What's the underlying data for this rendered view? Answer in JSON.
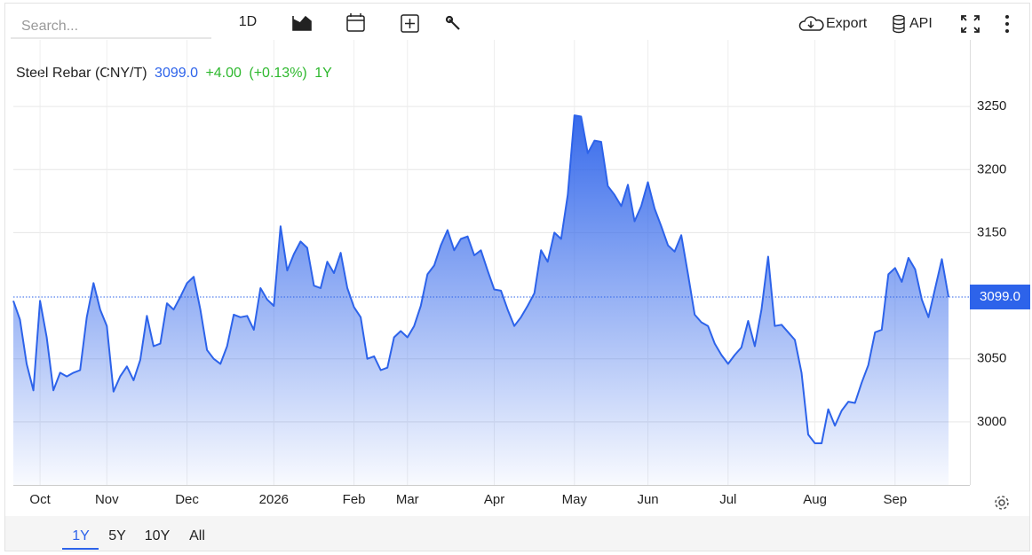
{
  "toolbar": {
    "search_placeholder": "Search...",
    "interval": "1D",
    "export": "Export",
    "api": "API"
  },
  "ranges": [
    "1Y",
    "5Y",
    "10Y",
    "All"
  ],
  "chart_data": {
    "type": "area",
    "title": "Steel Rebar (CNY/T)",
    "price": "3099.0",
    "change": "+4.00",
    "change_pct": "(+0.13%)",
    "period": "1Y",
    "color": "#2d63ea",
    "categories": [
      null,
      null,
      null,
      null,
      "Oct",
      null,
      null,
      null,
      null,
      null,
      null,
      null,
      null,
      null,
      "Nov",
      null,
      null,
      null,
      null,
      null,
      null,
      null,
      null,
      null,
      null,
      null,
      "Dec",
      null,
      null,
      null,
      null,
      null,
      null,
      null,
      null,
      null,
      null,
      null,
      null,
      "2026",
      null,
      null,
      null,
      null,
      null,
      null,
      null,
      null,
      null,
      null,
      null,
      "Feb",
      null,
      null,
      null,
      null,
      null,
      null,
      null,
      "Mar",
      null,
      null,
      null,
      null,
      null,
      null,
      null,
      null,
      null,
      null,
      null,
      null,
      "Apr",
      null,
      null,
      null,
      null,
      null,
      null,
      null,
      null,
      null,
      null,
      null,
      "May",
      null,
      null,
      null,
      null,
      null,
      null,
      null,
      null,
      null,
      null,
      "Jun",
      null,
      null,
      null,
      null,
      null,
      null,
      null,
      null,
      null,
      null,
      null,
      "Jul",
      null,
      null,
      null,
      null,
      null,
      null,
      null,
      null,
      null,
      null,
      null,
      null,
      "Aug",
      null,
      null,
      null,
      null,
      null,
      null,
      null,
      null,
      null,
      null,
      null,
      "Sep",
      null,
      null,
      null,
      null,
      null,
      null,
      null,
      null
    ],
    "values": [
      3096,
      3081,
      3046,
      3025,
      3096,
      3067,
      3025,
      3039,
      3036,
      3039,
      3041,
      3083,
      3110,
      3089,
      3076,
      3024,
      3036,
      3044,
      3033,
      3049,
      3084,
      3060,
      3062,
      3094,
      3089,
      3099,
      3110,
      3115,
      3089,
      3057,
      3050,
      3046,
      3060,
      3085,
      3083,
      3084,
      3073,
      3106,
      3097,
      3092,
      3155,
      3120,
      3133,
      3143,
      3138,
      3108,
      3106,
      3127,
      3118,
      3134,
      3106,
      3091,
      3083,
      3050,
      3052,
      3041,
      3043,
      3067,
      3072,
      3067,
      3076,
      3092,
      3117,
      3124,
      3140,
      3152,
      3136,
      3145,
      3147,
      3132,
      3136,
      3120,
      3105,
      3104,
      3089,
      3076,
      3083,
      3092,
      3102,
      3136,
      3127,
      3150,
      3145,
      3180,
      3243,
      3242,
      3213,
      3223,
      3222,
      3187,
      3180,
      3171,
      3188,
      3159,
      3171,
      3190,
      3169,
      3155,
      3140,
      3135,
      3148,
      3117,
      3085,
      3079,
      3076,
      3062,
      3053,
      3046,
      3053,
      3059,
      3080,
      3060,
      3089,
      3131,
      3076,
      3077,
      3071,
      3065,
      3039,
      2990,
      2983,
      2983,
      3010,
      2997,
      3009,
      3016,
      3015,
      3031,
      3045,
      3071,
      3073,
      3117,
      3122,
      3111,
      3130,
      3121,
      3097,
      3083,
      3106,
      3129,
      3099
    ],
    "ylim": [
      2950,
      3300
    ],
    "yticks": [
      3000,
      3050,
      3150,
      3200,
      3250
    ],
    "grid": true
  }
}
